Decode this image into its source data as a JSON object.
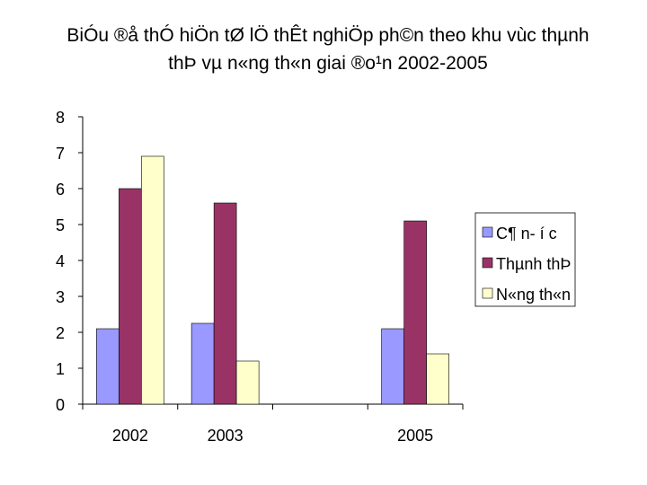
{
  "title_lines": [
    "BiÓu ®å thÓ hiÖn tØ lÖ thÊt nghiÖp ph©n theo khu vùc thµnh",
    "thÞ vµ n«ng th«n giai ®o¹n 2002-2005"
  ],
  "chart_data": {
    "type": "bar",
    "title": "BiÓu ®å thÓ hiÖn tØ lÖ thÊt nghiÖp ph©n theo khu vùc thµnh thÞ vµ n«ng th«n giai ®o¹n 2002-2005",
    "xlabel": "",
    "ylabel": "",
    "categories": [
      "2002",
      "2003",
      "",
      "2005"
    ],
    "ylim": [
      0,
      8
    ],
    "yticks": [
      "0",
      "1",
      "2",
      "3",
      "4",
      "5",
      "6",
      "7",
      "8"
    ],
    "grid": false,
    "legend_position": "right",
    "series": [
      {
        "name": "C¶ n- í c",
        "values": [
          2.1,
          2.25,
          null,
          2.1
        ],
        "color": "#9999ff"
      },
      {
        "name": "Thµnh thÞ",
        "values": [
          6.0,
          5.6,
          null,
          5.1
        ],
        "color": "#993366"
      },
      {
        "name": "N«ng th«n",
        "values": [
          6.9,
          1.2,
          null,
          1.4
        ],
        "color": "#ffffcc"
      }
    ]
  }
}
